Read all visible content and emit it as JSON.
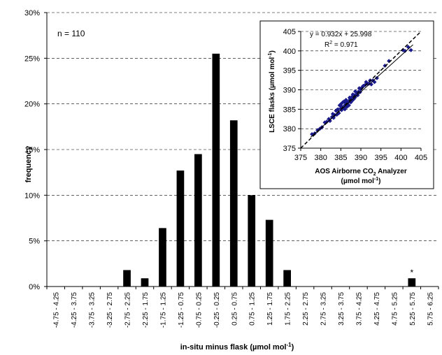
{
  "chart_data": [
    {
      "type": "bar",
      "xlabel": "in-situ minus flask (µmol mol",
      "xlabel_sup": "-1",
      "xlabel_end": ")",
      "ylabel": "frequency",
      "ylim": [
        0,
        0.3
      ],
      "yticks": [
        "0%",
        "5%",
        "10%",
        "15%",
        "20%",
        "25%",
        "30%"
      ],
      "grid": "horizontal dashed",
      "annotation": "n = 110",
      "outlier_marker": "*",
      "outlier_category_index": 20,
      "categories": [
        "-4.75 - 4.25",
        "-4.25 - 3.75",
        "-3.75 - 3.25",
        "-3.25 - 2.75",
        "-2.75 - 2.25",
        "-2.25 - 1.75",
        "-1.75 - 1.25",
        "-1.25 - 0.75",
        "-0.75 - 0.25",
        "-0.25 - 0.25",
        "0.25 - 0.75",
        "0.75 - 1.25",
        "1.25 - 1.75",
        "1.75 - 2.25",
        "2.25 - 2.75",
        "2.75 - 3.25",
        "3.25 - 3.75",
        "3.75 - 4.25",
        "4.25 - 4.75",
        "4.75 - 5.25",
        "5.25 - 5.75",
        "5.75 - 6.25"
      ],
      "values": [
        0,
        0,
        0,
        0,
        0.018,
        0.009,
        0.064,
        0.127,
        0.145,
        0.255,
        0.182,
        0.1,
        0.073,
        0.018,
        0,
        0,
        0,
        0,
        0,
        0,
        0.009,
        0
      ]
    },
    {
      "type": "scatter",
      "xlabel": "AOS Airborne CO",
      "xlabel_sub": "2",
      "xlabel_end": " Analyzer",
      "xlabel_line2": "(µmol mol",
      "xlabel_line2_sup": "-1",
      "xlabel_line2_end": ")",
      "ylabel": "LSCE flasks  (µmol mol",
      "ylabel_sup": "-1",
      "ylabel_end": ")",
      "xlim": [
        375,
        405
      ],
      "ylim": [
        375,
        405
      ],
      "xticks": [
        375,
        380,
        385,
        390,
        395,
        400,
        405
      ],
      "yticks": [
        375,
        380,
        385,
        390,
        395,
        400,
        405
      ],
      "grid": "horizontal dashed",
      "equation": "y = 0.932x + 25.998",
      "r2_label": "R",
      "r2_sup": "2",
      "r2_value": " = 0.971",
      "fit": {
        "slope": 0.932,
        "intercept": 25.998
      },
      "marker_color": "#1a1a8c",
      "x": [
        377.8,
        378.5,
        379.2,
        379.8,
        380.3,
        381.0,
        381.5,
        382.0,
        382.3,
        382.8,
        383.0,
        383.2,
        383.5,
        383.8,
        384.0,
        384.0,
        384.3,
        384.5,
        384.7,
        385.0,
        385.0,
        385.2,
        385.3,
        385.5,
        385.7,
        385.8,
        386.0,
        386.0,
        386.2,
        386.3,
        386.5,
        386.6,
        386.8,
        387.0,
        387.0,
        387.2,
        387.3,
        387.5,
        387.6,
        387.8,
        388.0,
        388.0,
        388.2,
        388.3,
        388.5,
        388.6,
        388.8,
        389.0,
        389.2,
        389.4,
        389.6,
        389.8,
        390.0,
        390.3,
        390.6,
        391.0,
        391.3,
        391.6,
        392.0,
        392.3,
        392.6,
        393.0,
        393.4,
        394.0,
        396.0,
        397.0,
        400.5,
        401.0,
        401.8,
        402.5
      ],
      "y": [
        378.6,
        378.8,
        379.6,
        380.0,
        380.4,
        381.6,
        381.8,
        382.5,
        382.0,
        383.0,
        383.8,
        382.8,
        383.5,
        384.6,
        383.6,
        384.8,
        385.0,
        384.0,
        386.0,
        385.2,
        386.3,
        384.8,
        385.6,
        386.8,
        385.4,
        387.0,
        386.0,
        385.0,
        386.6,
        387.4,
        385.6,
        386.9,
        386.2,
        387.0,
        386.0,
        388.0,
        387.6,
        386.8,
        388.0,
        387.2,
        388.4,
        388.8,
        387.6,
        388.6,
        388.0,
        389.6,
        388.6,
        389.0,
        388.6,
        389.5,
        390.4,
        389.4,
        390.2,
        390.6,
        391.0,
        391.2,
        392.0,
        391.6,
        391.6,
        392.4,
        391.4,
        392.4,
        392.0,
        393.0,
        396.2,
        397.4,
        400.2,
        400.0,
        401.0,
        400.2
      ]
    }
  ]
}
